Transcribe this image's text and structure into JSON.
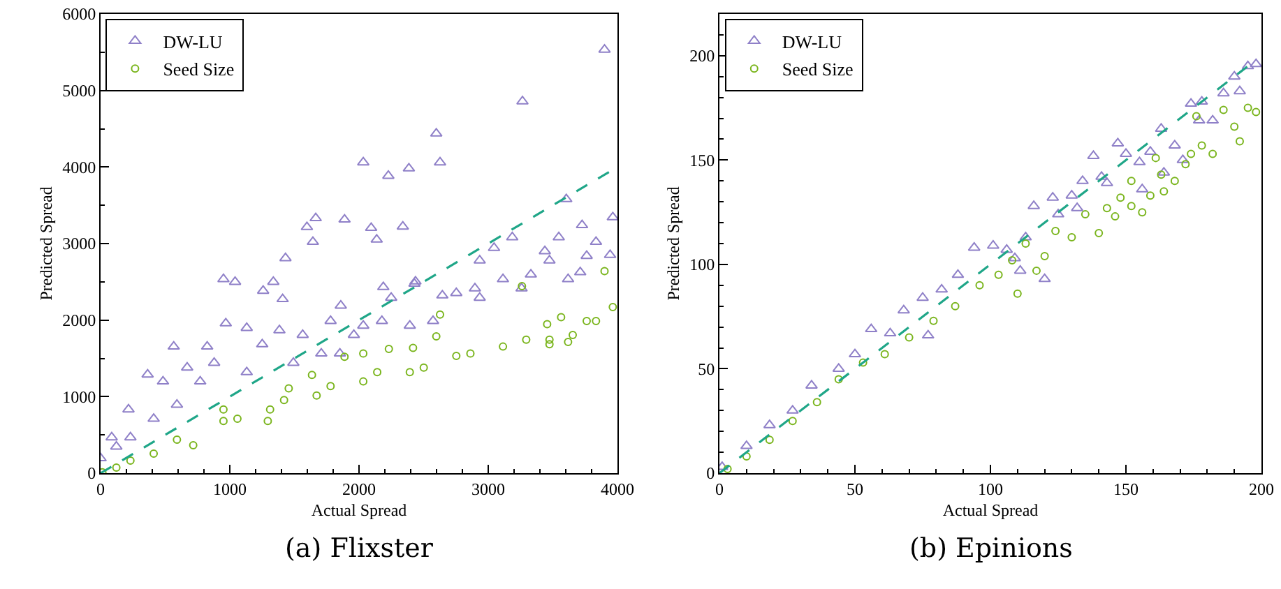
{
  "chart_data": [
    {
      "type": "scatter",
      "title": "(a) Flixster",
      "xlabel": "Actual Spread",
      "ylabel": "Predicted Spread",
      "xlim": [
        0,
        4000
      ],
      "xticks": [
        0,
        1000,
        2000,
        3000,
        4000
      ],
      "ylim": [
        0,
        6000
      ],
      "yticks": [
        0,
        1000,
        2000,
        3000,
        4000,
        5000,
        6000
      ],
      "grid": false,
      "legend": "top left",
      "series": [
        {
          "name": "DW-LU",
          "color": "#8f80c8",
          "marker": "triangle",
          "x": [
            3900,
            3265,
            2598,
            2627,
            2033,
            2227,
            2386,
            3964,
            3604,
            1888,
            1665,
            1597,
            2094,
            2339,
            2137,
            1643,
            1431,
            951,
            1041,
            1337,
            1258,
            1409,
            566,
            969,
            825,
            364,
            483,
            670,
            216,
            86,
            0,
            1131,
            1852,
            2393,
            2897,
            3114,
            3474,
            3762,
            3943,
            3726,
            3546,
            3186,
            2934,
            2753,
            2573,
            2177,
            2033,
            1780,
            1564,
            1384,
            1251,
            1131,
            879,
            771,
            591,
            411,
            231,
            122,
            1492,
            1708,
            1960,
            2249,
            2429,
            2645,
            2934,
            3258,
            3330,
            3438,
            3618,
            3834,
            1859,
            2188,
            2437,
            3045,
            3712
          ],
          "values": [
            5533,
            4858,
            4438,
            4061,
            4061,
            3885,
            3982,
            3344,
            3581,
            3314,
            3332,
            3216,
            3204,
            3222,
            3052,
            3022,
            2809,
            2535,
            2499,
            2499,
            2383,
            2274,
            1654,
            1958,
            1654,
            1289,
            1198,
            1380,
            833,
            468,
            195,
            1319,
            1563,
            1927,
            2414,
            2535,
            2779,
            2839,
            2851,
            3241,
            3082,
            3082,
            2779,
            2353,
            1988,
            1988,
            1927,
            1988,
            1806,
            1867,
            1684,
            1897,
            1441,
            1198,
            894,
            711,
            468,
            347,
            1441,
            1563,
            1806,
            2292,
            2475,
            2322,
            2292,
            2414,
            2596,
            2900,
            2535,
            3022,
            2189,
            2432,
            2505,
            2943,
            2626
          ]
        },
        {
          "name": "Seed Size",
          "color": "#7ab51d",
          "marker": "circle",
          "x": [
            14,
            231,
            591,
            951,
            1312,
            1672,
            2033,
            2393,
            2753,
            3114,
            3474,
            3834,
            3964,
            3900,
            3261,
            2627,
            2598,
            2418,
            2231,
            2033,
            1888,
            1636,
            1456,
            1294,
            951,
            717,
            411,
            122,
            1059,
            1420,
            1780,
            2141,
            2501,
            2862,
            3294,
            3654,
            3618,
            3456,
            3564,
            3762,
            3474
          ],
          "values": [
            12,
            164,
            438,
            681,
            833,
            1015,
            1198,
            1319,
            1532,
            1654,
            1745,
            1988,
            2171,
            2639,
            2444,
            2073,
            1788,
            1636,
            1623,
            1563,
            1520,
            1283,
            1107,
            681,
            833,
            365,
            255,
            73,
            711,
            955,
            1137,
            1319,
            1380,
            1563,
            1745,
            1806,
            1715,
            1946,
            2037,
            1988,
            1684
          ]
        },
        {
          "type": "line",
          "color": "#1fa688",
          "line_style": "dashed",
          "x": [
            0,
            3960
          ],
          "values": [
            0,
            3960
          ]
        }
      ]
    },
    {
      "type": "scatter",
      "title": "(b) Epinions",
      "xlabel": "Actual Spread",
      "ylabel": "Predicted Spread",
      "xlim": [
        0,
        200
      ],
      "xticks": [
        0,
        50,
        100,
        150,
        200
      ],
      "ylim": [
        0,
        220
      ],
      "yticks": [
        0,
        50,
        100,
        150,
        200
      ],
      "grid": false,
      "legend": "top left",
      "series": [
        {
          "name": "DW-LU",
          "color": "#8f80c8",
          "marker": "triangle",
          "x": [
            1,
            10,
            18.5,
            27,
            34,
            44,
            50,
            56,
            63,
            68,
            75,
            82,
            88,
            94,
            101,
            106,
            113,
            116,
            120,
            77,
            123,
            130,
            134,
            138,
            141,
            147,
            150,
            155,
            156,
            159,
            163,
            164,
            168,
            171,
            174,
            177,
            178,
            182,
            186,
            190,
            192,
            195,
            198,
            111,
            125,
            132,
            143,
            109
          ],
          "values": [
            3,
            13,
            23,
            30,
            42,
            50,
            57,
            69,
            67,
            78,
            84,
            88,
            95,
            108,
            109,
            107,
            113,
            128,
            93,
            66,
            132,
            133,
            140,
            152,
            142,
            158,
            153,
            149,
            136,
            154,
            165,
            144,
            157,
            150,
            177,
            169,
            178,
            169,
            182,
            190,
            183,
            195,
            196,
            97,
            124,
            127,
            139,
            103
          ]
        },
        {
          "name": "Seed Size",
          "color": "#7ab51d",
          "marker": "circle",
          "x": [
            3,
            10,
            18.5,
            27,
            36,
            44,
            53,
            61,
            70,
            79,
            87,
            96,
            103,
            110,
            108,
            113,
            117,
            120,
            124,
            130,
            135,
            140,
            143,
            146,
            148,
            152,
            156,
            152,
            159,
            164,
            163,
            168,
            172,
            174,
            178,
            182,
            186,
            190,
            192,
            195,
            198,
            176,
            161
          ],
          "values": [
            2,
            8,
            16,
            25,
            34,
            45,
            53,
            57,
            65,
            73,
            80,
            90,
            95,
            86,
            102,
            110,
            97,
            104,
            116,
            113,
            124,
            115,
            127,
            123,
            132,
            128,
            125,
            140,
            133,
            135,
            143,
            140,
            148,
            153,
            157,
            153,
            174,
            166,
            159,
            175,
            173,
            171,
            151
          ]
        },
        {
          "type": "line",
          "color": "#1fa688",
          "line_style": "dashed",
          "x": [
            0,
            198
          ],
          "values": [
            0,
            198
          ]
        }
      ]
    }
  ]
}
